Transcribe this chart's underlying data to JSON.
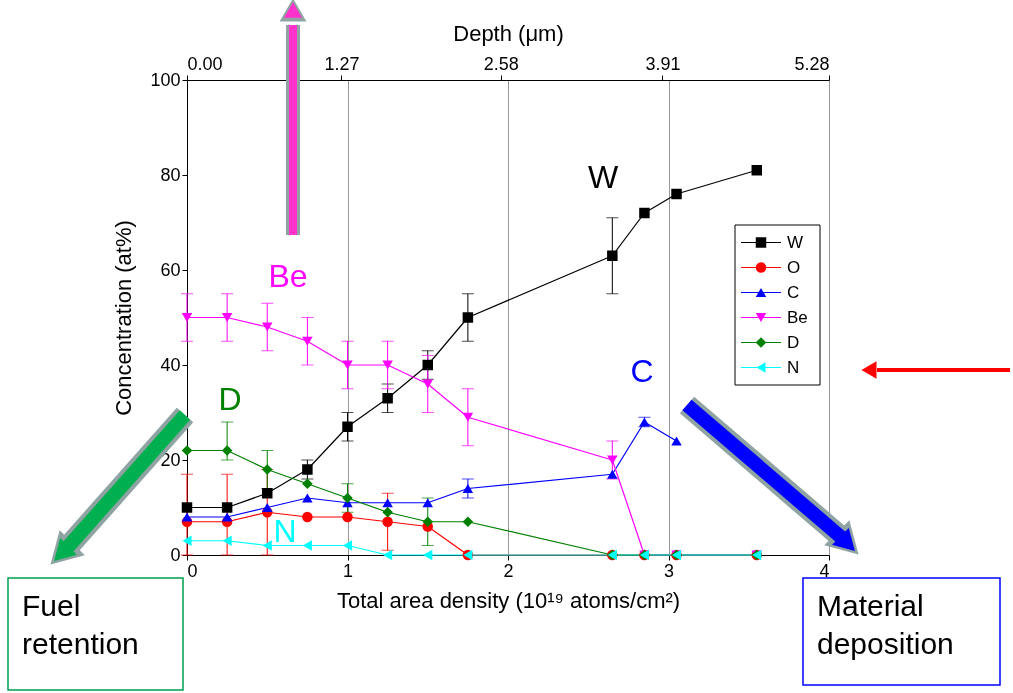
{
  "chart_data": {
    "type": "line",
    "xlabel": "Total area density (10¹⁹ atoms/cm²)",
    "ylabel": "Concentration (at%)",
    "x2label": "Depth (μm)",
    "x": [
      0,
      0.25,
      0.5,
      0.75,
      1,
      1.25,
      1.5,
      1.75,
      2.65,
      2.85,
      3.05,
      3.55
    ],
    "series": [
      {
        "name": "W",
        "color": "#000000",
        "marker": "square",
        "values": [
          10,
          10,
          13,
          18,
          27,
          33,
          40,
          50,
          63,
          72,
          76,
          81
        ],
        "errors": [
          null,
          null,
          null,
          2,
          3,
          3,
          3,
          5,
          8,
          null,
          null,
          null
        ]
      },
      {
        "name": "O",
        "color": "#ff0000",
        "marker": "circle",
        "values": [
          7,
          7,
          9,
          8,
          8,
          7,
          6,
          0,
          0,
          0,
          0,
          0
        ],
        "errors": [
          [
            0,
            17
          ],
          [
            0,
            17
          ],
          [
            0,
            18
          ],
          null,
          null,
          6,
          null,
          null,
          null,
          null,
          null,
          null
        ]
      },
      {
        "name": "C",
        "color": "#0000ff",
        "marker": "triangle",
        "values": [
          8,
          8,
          10,
          12,
          11,
          11,
          11,
          14,
          17,
          28,
          24,
          null
        ],
        "errors": [
          null,
          null,
          null,
          null,
          null,
          null,
          null,
          2,
          null,
          1,
          null,
          null
        ]
      },
      {
        "name": "Be",
        "color": "#ff00ff",
        "marker": "triangle-down",
        "values": [
          50,
          50,
          48,
          45,
          40,
          40,
          36,
          29,
          20,
          0,
          0,
          0
        ],
        "errors": [
          5,
          5,
          5,
          5,
          5,
          5,
          6,
          6,
          4,
          null,
          null,
          null
        ]
      },
      {
        "name": "D",
        "color": "#008000",
        "marker": "diamond",
        "values": [
          22,
          22,
          18,
          15,
          12,
          9,
          7,
          7,
          0,
          0,
          0,
          0
        ],
        "errors": [
          null,
          [
            20,
            28
          ],
          4,
          null,
          3,
          null,
          5,
          null,
          null,
          null,
          null,
          null
        ]
      },
      {
        "name": "N",
        "color": "#00ffff",
        "marker": "triangle-left",
        "values": [
          3,
          3,
          2,
          2,
          2,
          0,
          0,
          0,
          0,
          0,
          0,
          0
        ]
      }
    ],
    "xlim": [
      0,
      4
    ],
    "xticks": [
      0,
      1,
      2,
      3,
      4
    ],
    "x2lim": [
      0,
      5.28
    ],
    "x2ticks": [
      {
        "value": 0,
        "label": "0.00"
      },
      1.27,
      2.58,
      3.91,
      5.28
    ],
    "ylim": [
      0,
      100
    ],
    "yticks": [
      0,
      20,
      40,
      60,
      80,
      100
    ],
    "grid": "x",
    "legend": "right",
    "line_style": "solid",
    "annotations": [
      "Fuel retention",
      "Material deposition"
    ]
  }
}
